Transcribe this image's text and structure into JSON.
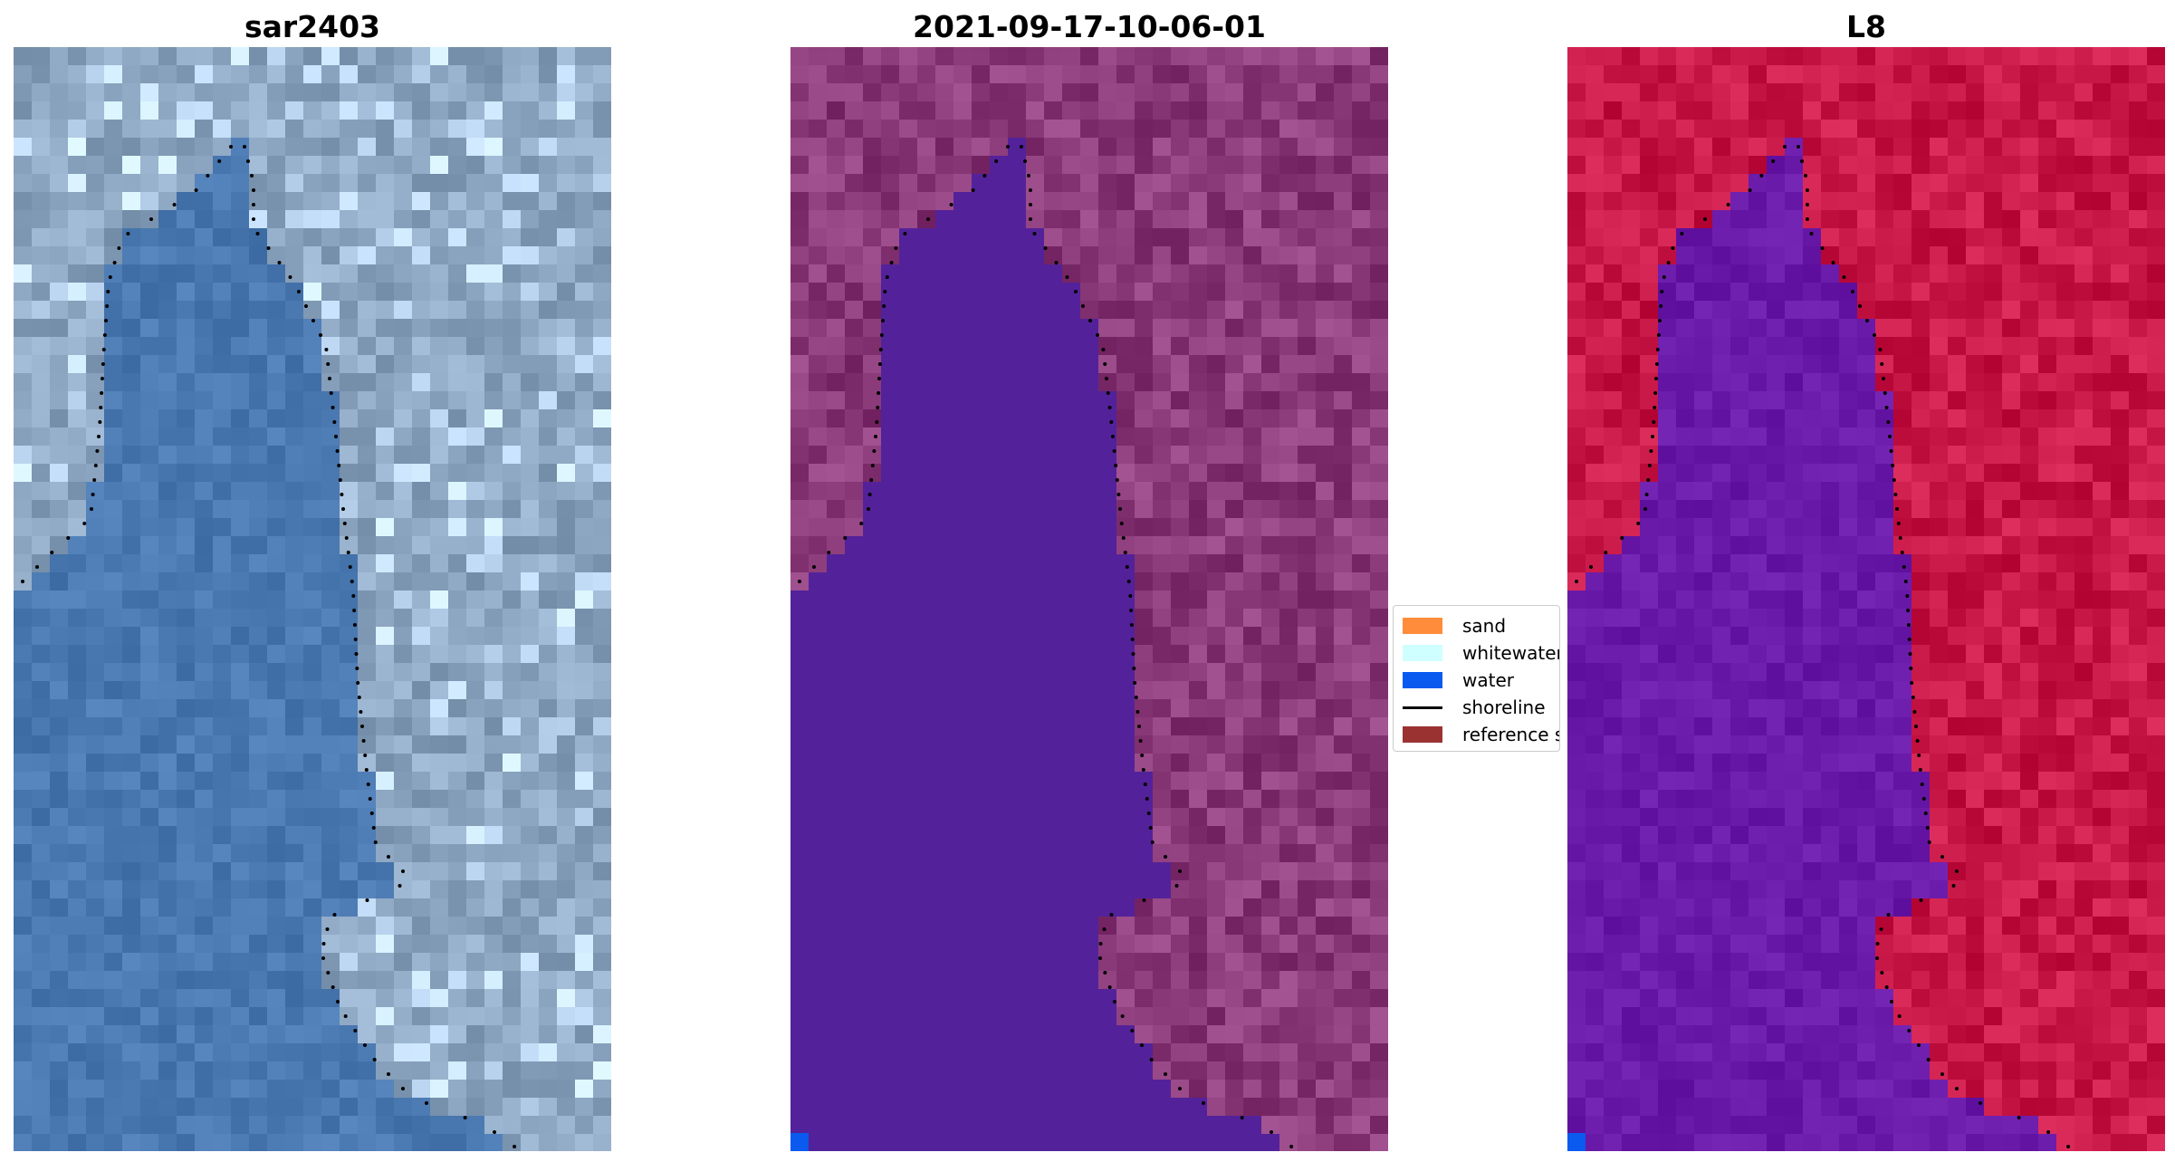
{
  "panels": [
    {
      "title": "sar2403",
      "style": "rgb"
    },
    {
      "title": "2021-09-17-10-06-01",
      "style": "classified"
    },
    {
      "title": "L8",
      "style": "falsecolor"
    }
  ],
  "legend": {
    "items": [
      {
        "label": "sand",
        "kind": "patch",
        "color": "#FF8C3A"
      },
      {
        "label": "whitewater",
        "kind": "patch",
        "color": "#CFFFFF"
      },
      {
        "label": "water",
        "kind": "patch",
        "color": "#0A5AF0"
      },
      {
        "label": "shoreline",
        "kind": "line",
        "color": "#000000"
      },
      {
        "label": "reference shoreline",
        "kind": "patch",
        "color": "#9B3232"
      }
    ]
  },
  "colors": {
    "rgb_water": "#4A78B0",
    "rgb_land": "#8CA5C0",
    "classified_water": "#53229A",
    "classified_land": "#8A3A78",
    "falsecolor_water": "#6A1AA8",
    "falsecolor_land": "#C81848",
    "water_pixel": "#0A5AF0",
    "shoreline": "#000000"
  }
}
